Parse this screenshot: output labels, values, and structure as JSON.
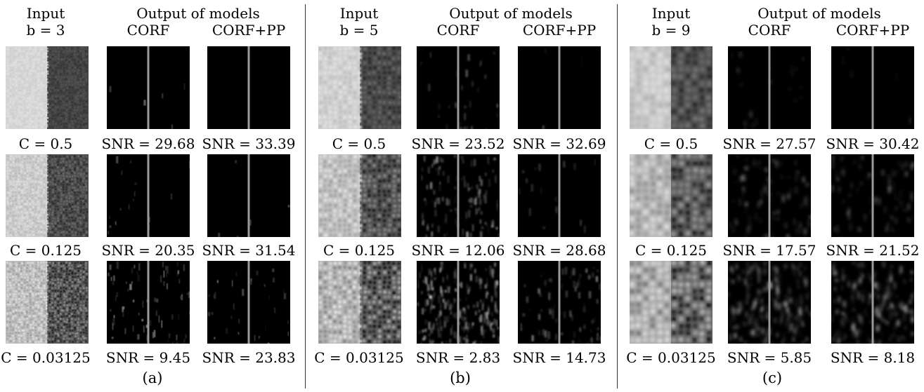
{
  "figure": {
    "panels": [
      {
        "id": "a",
        "label": "(a)",
        "header": {
          "input": "Input",
          "param": "b = 3",
          "output_group": "Output of models",
          "model1": "CORF",
          "model2": "CORF+PP"
        },
        "blur": 0.5,
        "rows": [
          {
            "contrast": "C = 0.5",
            "snr_corf": "SNR = 29.68",
            "snr_pp": "SNR = 33.39",
            "texture": 0.15,
            "noise_corf": 0.02,
            "noise_pp": 0.0
          },
          {
            "contrast": "C = 0.125",
            "snr_corf": "SNR = 20.35",
            "snr_pp": "SNR = 31.54",
            "texture": 0.3,
            "noise_corf": 0.06,
            "noise_pp": 0.02
          },
          {
            "contrast": "C = 0.03125",
            "snr_corf": "SNR = 9.45",
            "snr_pp": "SNR = 23.83",
            "texture": 0.5,
            "noise_corf": 0.28,
            "noise_pp": 0.12
          }
        ]
      },
      {
        "id": "b",
        "label": "(b)",
        "header": {
          "input": "Input",
          "param": "b = 5",
          "output_group": "Output of models",
          "model1": "CORF",
          "model2": "CORF+PP"
        },
        "blur": 1.2,
        "rows": [
          {
            "contrast": "C = 0.5",
            "snr_corf": "SNR = 23.52",
            "snr_pp": "SNR = 32.69",
            "texture": 0.25,
            "noise_corf": 0.12,
            "noise_pp": 0.01
          },
          {
            "contrast": "C = 0.125",
            "snr_corf": "SNR = 12.06",
            "snr_pp": "SNR = 28.68",
            "texture": 0.45,
            "noise_corf": 0.45,
            "noise_pp": 0.06
          },
          {
            "contrast": "C = 0.03125",
            "snr_corf": "SNR = 2.83",
            "snr_pp": "SNR = 14.73",
            "texture": 0.65,
            "noise_corf": 0.85,
            "noise_pp": 0.3
          }
        ]
      },
      {
        "id": "c",
        "label": "(c)",
        "header": {
          "input": "Input",
          "param": "b = 9",
          "output_group": "Output of models",
          "model1": "CORF",
          "model2": "CORF+PP"
        },
        "blur": 2.4,
        "rows": [
          {
            "contrast": "C = 0.5",
            "snr_corf": "SNR = 27.57",
            "snr_pp": "SNR = 30.42",
            "texture": 0.35,
            "noise_corf": 0.08,
            "noise_pp": 0.02
          },
          {
            "contrast": "C = 0.125",
            "snr_corf": "SNR = 17.57",
            "snr_pp": "SNR = 21.52",
            "texture": 0.6,
            "noise_corf": 0.35,
            "noise_pp": 0.3
          },
          {
            "contrast": "C = 0.03125",
            "snr_corf": "SNR = 5.85",
            "snr_pp": "SNR = 8.18",
            "texture": 0.8,
            "noise_corf": 0.8,
            "noise_pp": 0.7
          }
        ]
      }
    ]
  }
}
